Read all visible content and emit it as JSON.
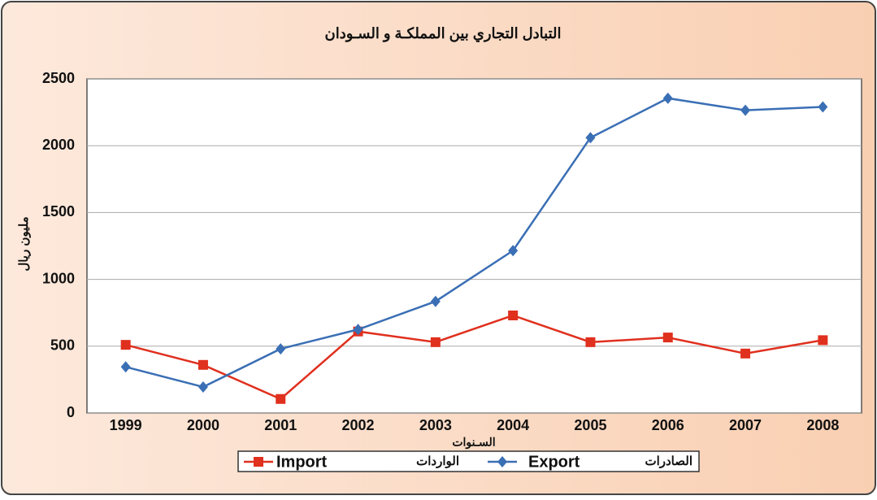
{
  "chart_data": {
    "type": "line",
    "title": "التبادل التجاري بين المملكـة و السـودان",
    "x_label": "السـنوات",
    "y_label": "مليون ريال",
    "categories": [
      "1999",
      "2000",
      "2001",
      "2002",
      "2003",
      "2004",
      "2005",
      "2006",
      "2007",
      "2008"
    ],
    "series": [
      {
        "name": "Import",
        "name_ar": "الواردات",
        "color": "#e0301e",
        "marker": "square",
        "values": [
          510,
          360,
          105,
          610,
          530,
          730,
          530,
          565,
          445,
          545
        ]
      },
      {
        "name": "Export",
        "name_ar": "الصادرات",
        "color": "#3a6fb5",
        "marker": "diamond",
        "values": [
          345,
          195,
          480,
          625,
          835,
          1215,
          2060,
          2355,
          2265,
          2290
        ]
      }
    ],
    "ylim": [
      0,
      2500
    ],
    "yticks": [
      0,
      500,
      1000,
      1500,
      2000,
      2500
    ],
    "grid": true,
    "legend": "bottom"
  }
}
